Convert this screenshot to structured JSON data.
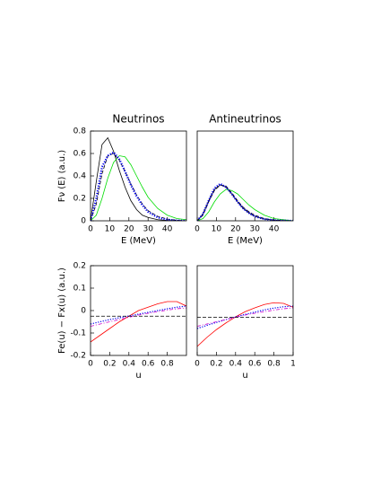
{
  "chart_data": [
    {
      "type": "line",
      "title": "Neutrinos",
      "x_label": "E (MeV)",
      "y_label": "Fν (E)  (a.u.)",
      "x": [
        0,
        3,
        6,
        9,
        12,
        15,
        18,
        21,
        24,
        27,
        30,
        35,
        40,
        45,
        50
      ],
      "xlim": [
        0,
        50
      ],
      "xticks": [
        0,
        10,
        20,
        30,
        40
      ],
      "ylim": [
        0,
        0.8
      ],
      "yticks": [
        0,
        0.2,
        0.4,
        0.6,
        0.8
      ],
      "series": [
        {
          "color": "#000000",
          "style": "solid",
          "width": 0.8,
          "values": [
            0,
            0.35,
            0.68,
            0.74,
            0.62,
            0.45,
            0.3,
            0.18,
            0.1,
            0.05,
            0.03,
            0.01,
            0.004,
            0.001,
            0
          ]
        },
        {
          "color": "#00dd00",
          "style": "solid",
          "width": 0.8,
          "values": [
            0,
            0.05,
            0.2,
            0.38,
            0.52,
            0.58,
            0.57,
            0.5,
            0.4,
            0.3,
            0.21,
            0.11,
            0.05,
            0.02,
            0.01
          ]
        },
        {
          "color": "#000000",
          "style": "dashed",
          "width": 0.8,
          "values": [
            0,
            0.15,
            0.42,
            0.58,
            0.6,
            0.54,
            0.44,
            0.33,
            0.23,
            0.15,
            0.09,
            0.04,
            0.015,
            0.005,
            0
          ]
        },
        {
          "color": "#0000ee",
          "style": "dotted",
          "width": 2.2,
          "values": [
            0,
            0.2,
            0.48,
            0.58,
            0.61,
            0.55,
            0.44,
            0.32,
            0.22,
            0.14,
            0.08,
            0.03,
            0.01,
            0.003,
            0
          ]
        }
      ]
    },
    {
      "type": "line",
      "title": "Antineutrinos",
      "x_label": "E (MeV)",
      "x": [
        0,
        3,
        6,
        9,
        12,
        15,
        18,
        21,
        24,
        27,
        30,
        35,
        40,
        45,
        50
      ],
      "xlim": [
        0,
        50
      ],
      "xticks": [
        0,
        10,
        20,
        30,
        40
      ],
      "ylim": [
        0,
        0.8
      ],
      "series": [
        {
          "color": "#000000",
          "style": "solid",
          "width": 0.8,
          "values": [
            0,
            0.06,
            0.18,
            0.28,
            0.32,
            0.3,
            0.24,
            0.17,
            0.11,
            0.07,
            0.04,
            0.015,
            0.005,
            0.002,
            0
          ]
        },
        {
          "color": "#00dd00",
          "style": "solid",
          "width": 0.8,
          "values": [
            0,
            0.02,
            0.08,
            0.17,
            0.24,
            0.28,
            0.27,
            0.24,
            0.19,
            0.14,
            0.1,
            0.05,
            0.02,
            0.01,
            0
          ]
        },
        {
          "color": "#000000",
          "style": "dashed",
          "width": 0.8,
          "values": [
            0,
            0.05,
            0.17,
            0.27,
            0.32,
            0.31,
            0.25,
            0.18,
            0.12,
            0.08,
            0.05,
            0.02,
            0.007,
            0.002,
            0
          ]
        },
        {
          "color": "#0000ee",
          "style": "dotted",
          "width": 2.2,
          "values": [
            0,
            0.06,
            0.18,
            0.29,
            0.33,
            0.3,
            0.24,
            0.17,
            0.11,
            0.07,
            0.04,
            0.015,
            0.005,
            0.002,
            0
          ]
        }
      ]
    },
    {
      "type": "line",
      "x_label": "u",
      "y_label": "Fe(u) − Fx(u)  (a.u.)",
      "x": [
        0,
        0.1,
        0.2,
        0.3,
        0.4,
        0.5,
        0.6,
        0.7,
        0.8,
        0.9,
        1
      ],
      "xlim": [
        0,
        1
      ],
      "xticks": [
        0,
        0.2,
        0.4,
        0.6,
        0.8
      ],
      "ylim": [
        -0.2,
        0.2
      ],
      "yticks": [
        -0.2,
        -0.1,
        0,
        0.1,
        0.2
      ],
      "series": [
        {
          "color": "#ff0000",
          "style": "solid",
          "width": 0.8,
          "values": [
            -0.14,
            -0.11,
            -0.08,
            -0.05,
            -0.025,
            0,
            0.015,
            0.03,
            0.04,
            0.04,
            0.02
          ]
        },
        {
          "color": "#0000ee",
          "style": "dotted",
          "width": 1.2,
          "values": [
            -0.06,
            -0.05,
            -0.04,
            -0.032,
            -0.024,
            -0.016,
            -0.008,
            0,
            0.008,
            0.015,
            0.02
          ]
        },
        {
          "color": "#cc00cc",
          "style": "dash-dot",
          "width": 0.8,
          "values": [
            -0.07,
            -0.06,
            -0.05,
            -0.04,
            -0.03,
            -0.02,
            -0.012,
            -0.005,
            0.002,
            0.008,
            0.012
          ]
        },
        {
          "color": "#000000",
          "style": "dashed",
          "width": 0.8,
          "values": [
            -0.025,
            -0.025,
            -0.025,
            -0.025,
            -0.025,
            -0.025,
            -0.025,
            -0.025,
            -0.025,
            -0.025,
            -0.025
          ]
        }
      ]
    },
    {
      "type": "line",
      "x_label": "u",
      "x": [
        0,
        0.1,
        0.2,
        0.3,
        0.4,
        0.5,
        0.6,
        0.7,
        0.8,
        0.9,
        1
      ],
      "xlim": [
        0,
        1
      ],
      "xticks": [
        0,
        0.2,
        0.4,
        0.6,
        0.8,
        1
      ],
      "ylim": [
        -0.2,
        0.2
      ],
      "series": [
        {
          "color": "#ff0000",
          "style": "solid",
          "width": 0.8,
          "values": [
            -0.16,
            -0.12,
            -0.085,
            -0.055,
            -0.028,
            -0.005,
            0.012,
            0.027,
            0.035,
            0.032,
            0.015
          ]
        },
        {
          "color": "#0000ee",
          "style": "dotted",
          "width": 1.2,
          "values": [
            -0.08,
            -0.066,
            -0.053,
            -0.04,
            -0.028,
            -0.017,
            -0.007,
            0.003,
            0.011,
            0.017,
            0.02
          ]
        },
        {
          "color": "#cc00cc",
          "style": "dash-dot",
          "width": 0.8,
          "values": [
            -0.07,
            -0.06,
            -0.05,
            -0.04,
            -0.03,
            -0.02,
            -0.012,
            -0.005,
            0.002,
            0.008,
            0.012
          ]
        },
        {
          "color": "#000000",
          "style": "dashed",
          "width": 0.8,
          "values": [
            -0.03,
            -0.03,
            -0.03,
            -0.03,
            -0.03,
            -0.03,
            -0.03,
            -0.03,
            -0.03,
            -0.03,
            -0.03
          ]
        }
      ]
    }
  ]
}
